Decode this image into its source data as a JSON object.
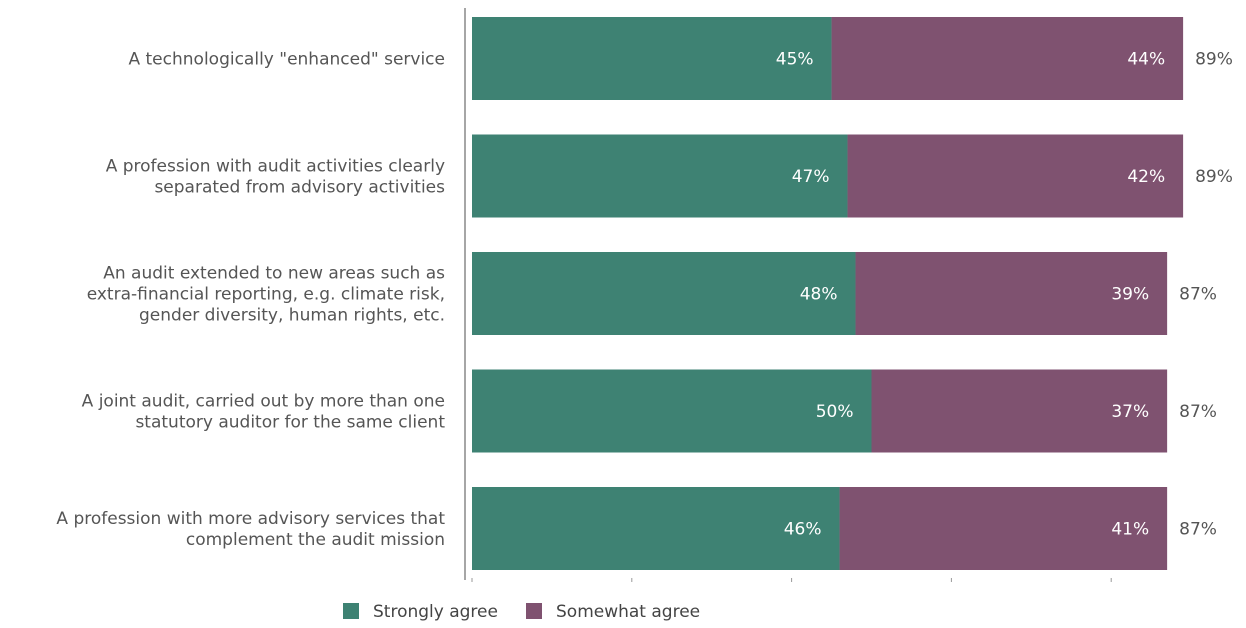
{
  "chart_data": {
    "type": "bar",
    "orientation": "horizontal",
    "stacked": true,
    "categories": [
      [
        "A technologically \"enhanced\" service"
      ],
      [
        "A profession with audit activities clearly",
        "separated from advisory activities"
      ],
      [
        "An audit extended to new areas such as",
        "extra-financial reporting, e.g. climate risk,",
        "gender diversity, human rights, etc."
      ],
      [
        "A joint audit, carried out by more than one",
        "statutory auditor for the same client"
      ],
      [
        "A profession with more advisory services that",
        "complement the audit mission"
      ]
    ],
    "series": [
      {
        "name": "Strongly agree",
        "color": "#3e8273",
        "values": [
          45,
          47,
          48,
          50,
          46
        ],
        "labels": [
          "45%",
          "47%",
          "48%",
          "50%",
          "46%"
        ]
      },
      {
        "name": "Somewhat agree",
        "color": "#7f5270",
        "values": [
          44,
          42,
          39,
          37,
          41
        ],
        "labels": [
          "44%",
          "42%",
          "39%",
          "37%",
          "41%"
        ]
      }
    ],
    "totals": [
      "89%",
      "89%",
      "87%",
      "87%",
      "87%"
    ],
    "xlim": [
      0,
      100
    ],
    "legend": "bottom-left",
    "grid": false
  }
}
